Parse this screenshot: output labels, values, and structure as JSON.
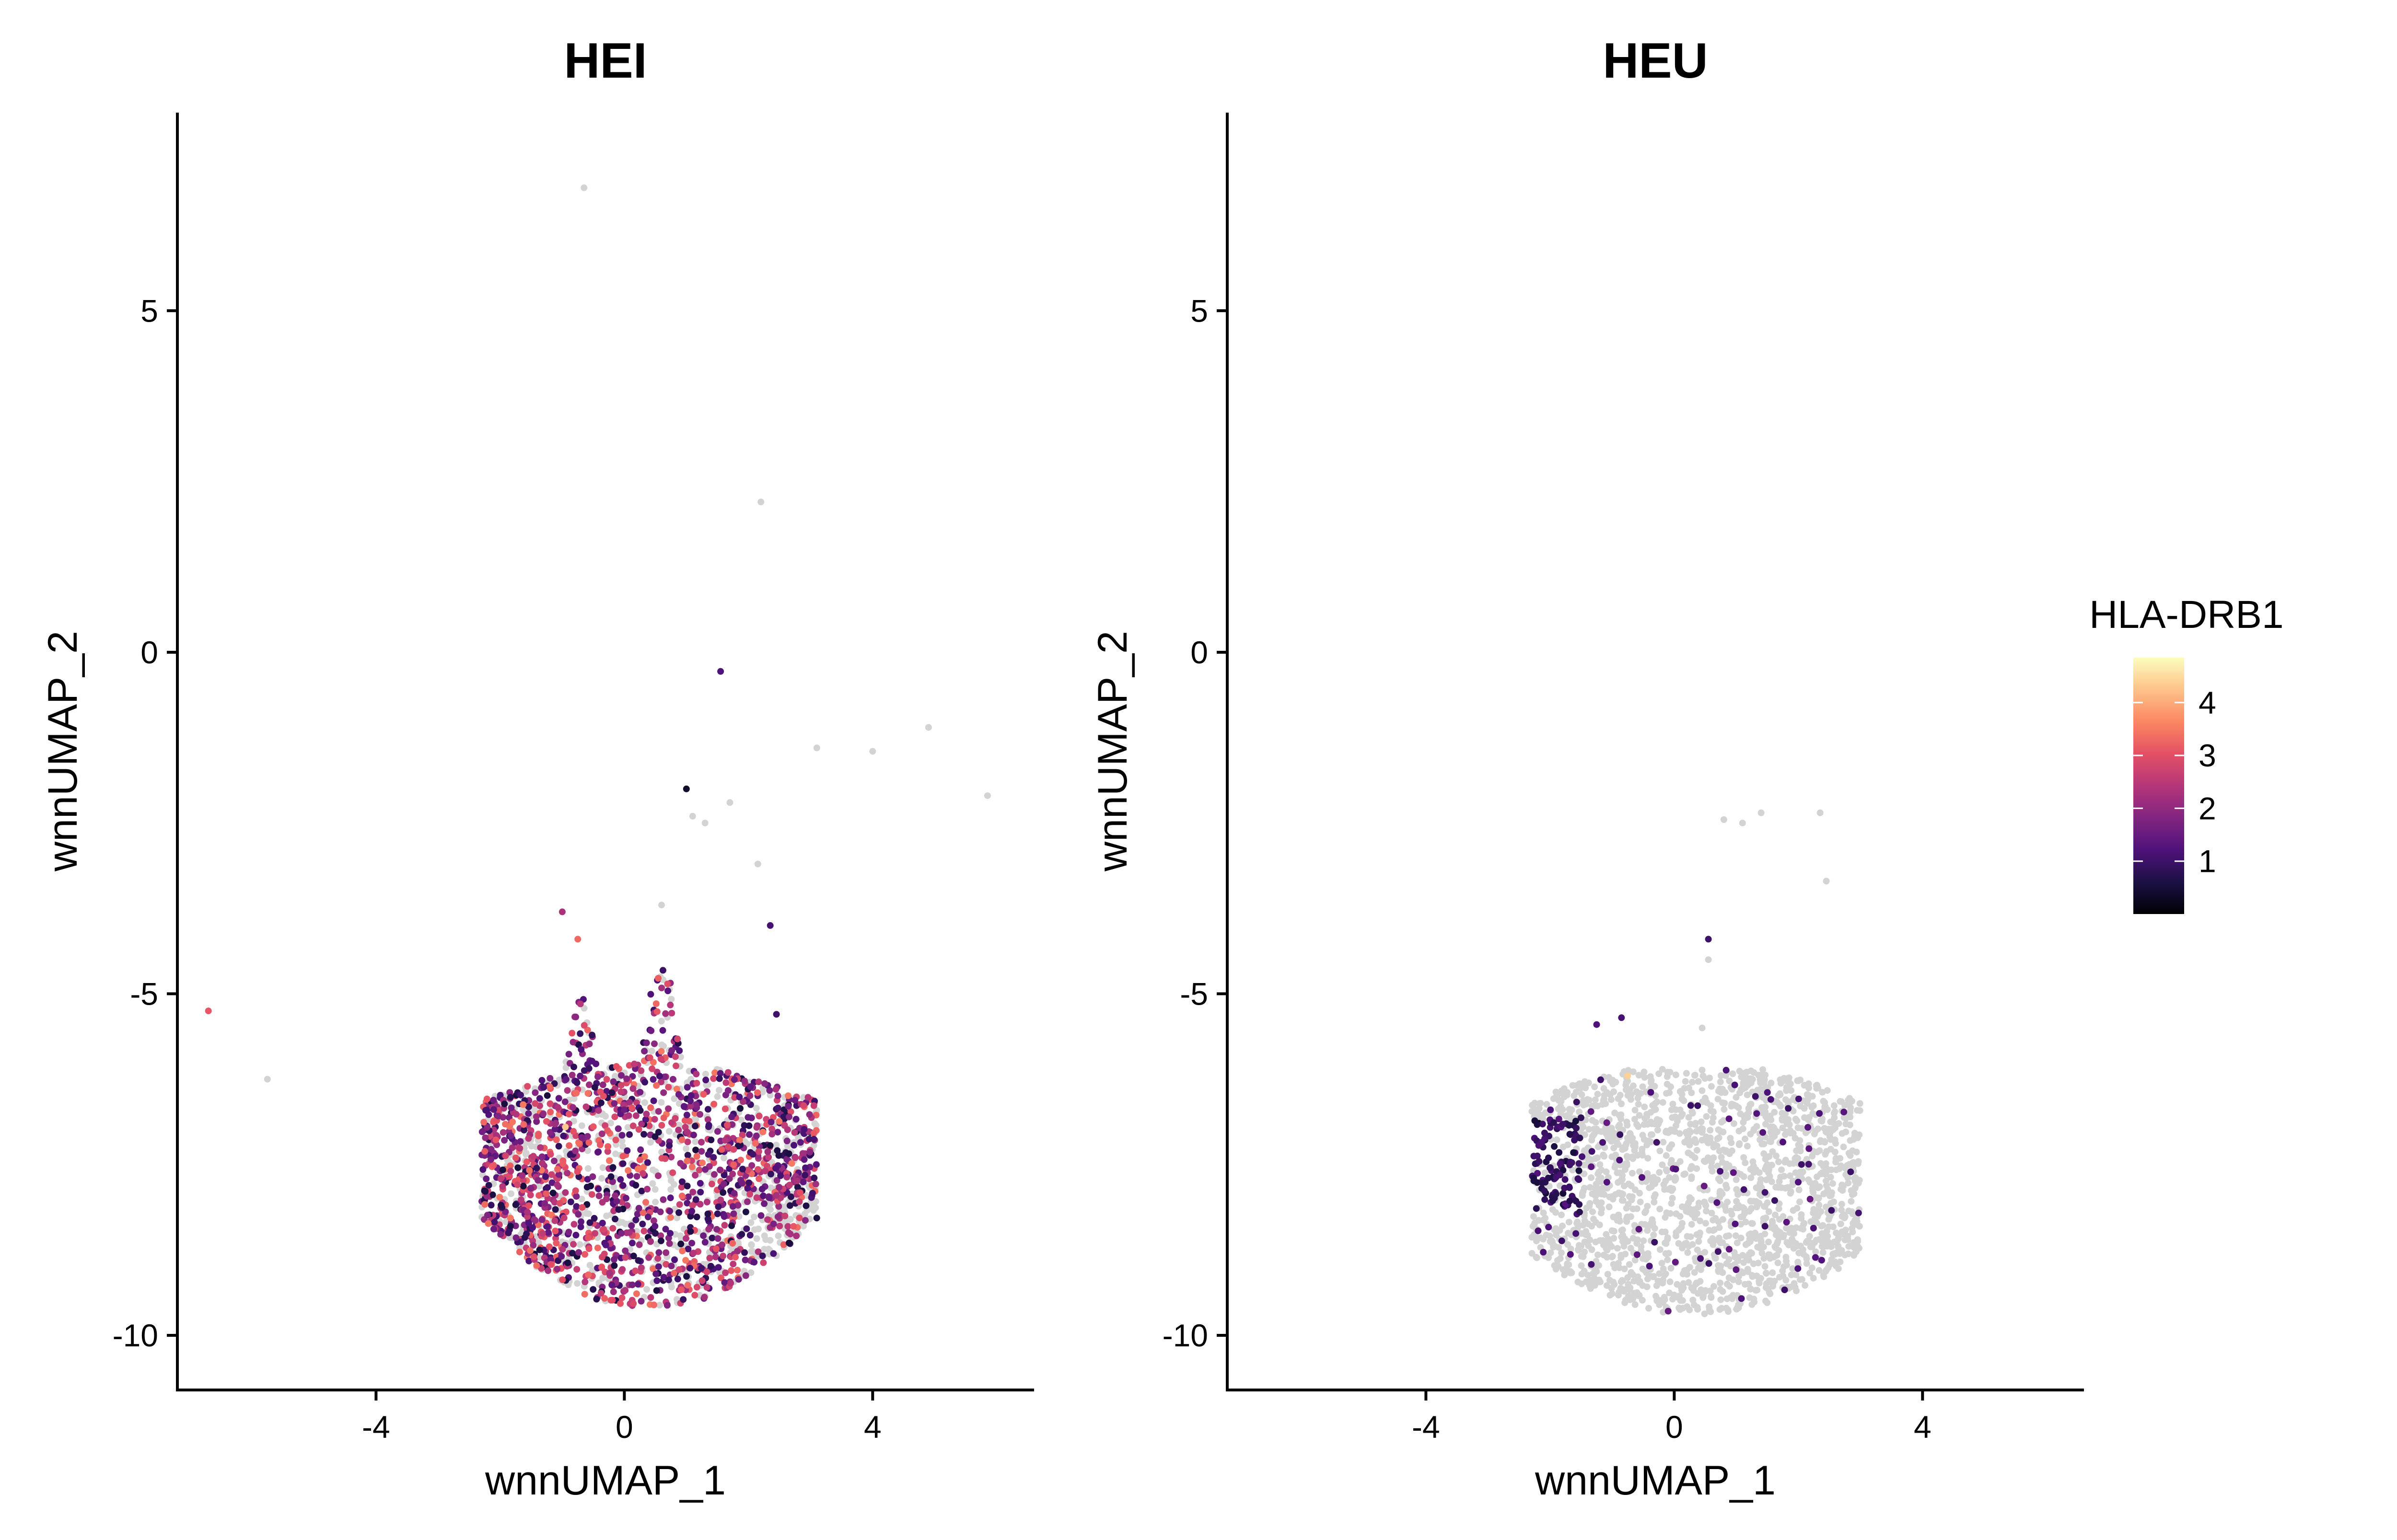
{
  "chart_data": [
    {
      "type": "scatter",
      "title": "HEI",
      "xlabel": "wnnUMAP_1",
      "ylabel": "wnnUMAP_2",
      "xlim": [
        -7.2,
        6.6
      ],
      "ylim": [
        -10.8,
        7.9
      ],
      "x_ticks": [
        "-4",
        "0",
        "4"
      ],
      "y_ticks": [
        "-10",
        "-5",
        "0",
        "5"
      ],
      "grid": false,
      "main_cluster": {
        "description_free": true,
        "center": [
          0.3,
          -7.9
        ],
        "x_range": [
          -2.3,
          3.1
        ],
        "y_range": [
          -9.6,
          -4.3
        ],
        "approx_cells": 2200,
        "dominant_expression": [
          0.5,
          3.5
        ]
      },
      "points": [
        {
          "x": -0.65,
          "y": 6.8,
          "value": 0
        },
        {
          "x": 2.2,
          "y": 2.2,
          "value": 0
        },
        {
          "x": 1.55,
          "y": -0.28,
          "value": 1.2
        },
        {
          "x": 3.1,
          "y": -1.4,
          "value": 0
        },
        {
          "x": 4.0,
          "y": -1.45,
          "value": 0
        },
        {
          "x": 4.9,
          "y": -1.1,
          "value": 0
        },
        {
          "x": 5.85,
          "y": -2.1,
          "value": 0
        },
        {
          "x": -6.7,
          "y": -5.25,
          "value": 3.1
        },
        {
          "x": -5.75,
          "y": -6.25,
          "value": 0
        },
        {
          "x": 1.0,
          "y": -2.0,
          "value": 0.4
        },
        {
          "x": 1.1,
          "y": -2.4,
          "value": 0
        },
        {
          "x": 1.3,
          "y": -2.5,
          "value": 0
        },
        {
          "x": 2.35,
          "y": -4.0,
          "value": 1.1
        },
        {
          "x": 2.45,
          "y": -5.3,
          "value": 1.0
        },
        {
          "x": -1.0,
          "y": -3.8,
          "value": 2.3
        },
        {
          "x": -0.75,
          "y": -4.2,
          "value": 3.3
        },
        {
          "x": 2.15,
          "y": -3.1,
          "value": 0
        },
        {
          "x": 0.6,
          "y": -3.7,
          "value": 0
        },
        {
          "x": 1.7,
          "y": -2.2,
          "value": 0
        },
        {
          "x": -0.95,
          "y": -6.95,
          "value": 4.3
        }
      ]
    },
    {
      "type": "scatter",
      "title": "HEU",
      "xlabel": "wnnUMAP_1",
      "ylabel": "wnnUMAP_2",
      "xlim": [
        -7.2,
        6.6
      ],
      "ylim": [
        -10.8,
        7.9
      ],
      "x_ticks": [
        "-4",
        "0",
        "4"
      ],
      "y_ticks": [
        "-10",
        "-5",
        "0",
        "5"
      ],
      "grid": false,
      "main_cluster": {
        "center": [
          0.9,
          -8.3
        ],
        "x_range": [
          -2.3,
          3.0
        ],
        "y_range": [
          -9.7,
          -6.1
        ],
        "approx_cells": 2000,
        "dominant_expression": [
          0,
          0
        ],
        "expressing_edge": {
          "x_range": [
            -2.3,
            -1.5
          ],
          "y_range": [
            -8.2,
            -6.8
          ],
          "value": 0.9
        }
      },
      "points": [
        {
          "x": 0.55,
          "y": -4.2,
          "value": 1.0
        },
        {
          "x": 0.55,
          "y": -4.5,
          "value": 0
        },
        {
          "x": -0.85,
          "y": -5.35,
          "value": 1.1
        },
        {
          "x": -1.25,
          "y": -5.45,
          "value": 1.2
        },
        {
          "x": 0.45,
          "y": -5.5,
          "value": 0
        },
        {
          "x": 0.8,
          "y": -2.45,
          "value": 0
        },
        {
          "x": 1.1,
          "y": -2.5,
          "value": 0
        },
        {
          "x": 1.4,
          "y": -2.35,
          "value": 0
        },
        {
          "x": 2.35,
          "y": -2.35,
          "value": 0
        },
        {
          "x": 2.45,
          "y": -3.35,
          "value": 0
        },
        {
          "x": -0.75,
          "y": -6.2,
          "value": 4.4
        }
      ]
    }
  ],
  "legend": {
    "title": "HLA-DRB1",
    "ticks": [
      "1",
      "2",
      "3",
      "4"
    ],
    "tick_values": [
      1,
      2,
      3,
      4
    ],
    "range": [
      0,
      4.85
    ],
    "colors": [
      "#000004",
      "#1c1044",
      "#4f127b",
      "#812581",
      "#b5367a",
      "#e55064",
      "#fb8761",
      "#fec287",
      "#fcfdbf"
    ],
    "no_expression_color": "#d3d3d3"
  }
}
